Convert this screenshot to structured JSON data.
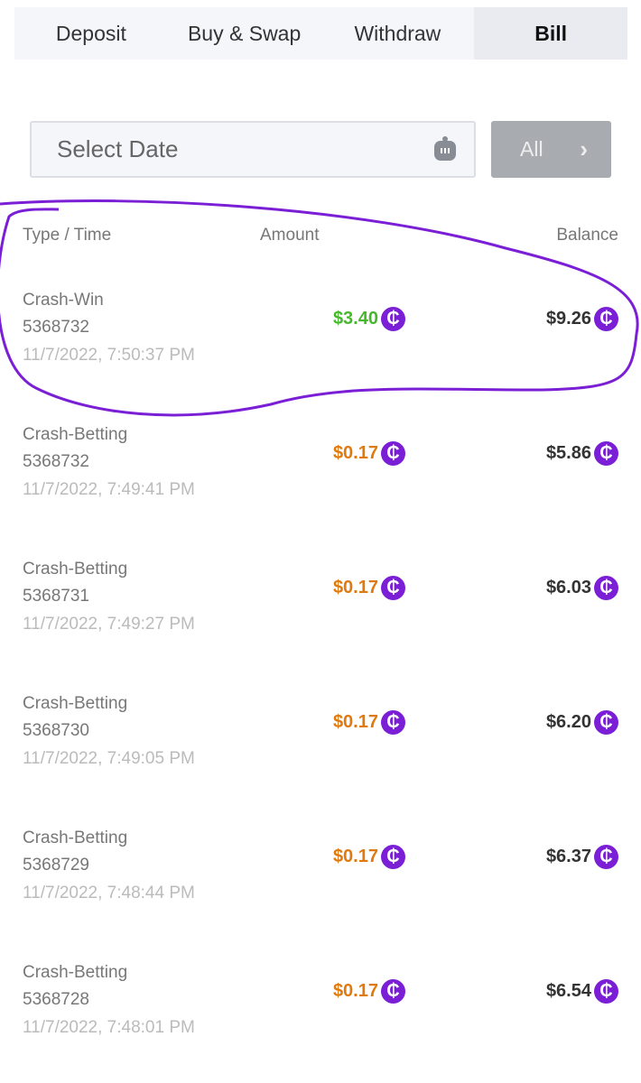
{
  "tabs": [
    {
      "label": "Deposit"
    },
    {
      "label": "Buy & Swap"
    },
    {
      "label": "Withdraw"
    },
    {
      "label": "Bill",
      "active": true
    }
  ],
  "filter": {
    "date_placeholder": "Select Date",
    "all_label": "All",
    "chevron": "›"
  },
  "columns": {
    "type_time": "Type / Time",
    "amount": "Amount",
    "balance": "Balance"
  },
  "coin_symbol": "₵",
  "colors": {
    "win": "#45b82c",
    "bet": "#e07a10",
    "coin": "#7a1fd6",
    "annotation": "#7a1fd6"
  },
  "rows": [
    {
      "type": "Crash-Win",
      "id": "5368732",
      "time": "11/7/2022, 7:50:37 PM",
      "amount": "$3.40",
      "balance": "$9.26",
      "kind": "win"
    },
    {
      "type": "Crash-Betting",
      "id": "5368732",
      "time": "11/7/2022, 7:49:41 PM",
      "amount": "$0.17",
      "balance": "$5.86",
      "kind": "bet"
    },
    {
      "type": "Crash-Betting",
      "id": "5368731",
      "time": "11/7/2022, 7:49:27 PM",
      "amount": "$0.17",
      "balance": "$6.03",
      "kind": "bet"
    },
    {
      "type": "Crash-Betting",
      "id": "5368730",
      "time": "11/7/2022, 7:49:05 PM",
      "amount": "$0.17",
      "balance": "$6.20",
      "kind": "bet"
    },
    {
      "type": "Crash-Betting",
      "id": "5368729",
      "time": "11/7/2022, 7:48:44 PM",
      "amount": "$0.17",
      "balance": "$6.37",
      "kind": "bet"
    },
    {
      "type": "Crash-Betting",
      "id": "5368728",
      "time": "11/7/2022, 7:48:01 PM",
      "amount": "$0.17",
      "balance": "$6.54",
      "kind": "bet"
    }
  ]
}
